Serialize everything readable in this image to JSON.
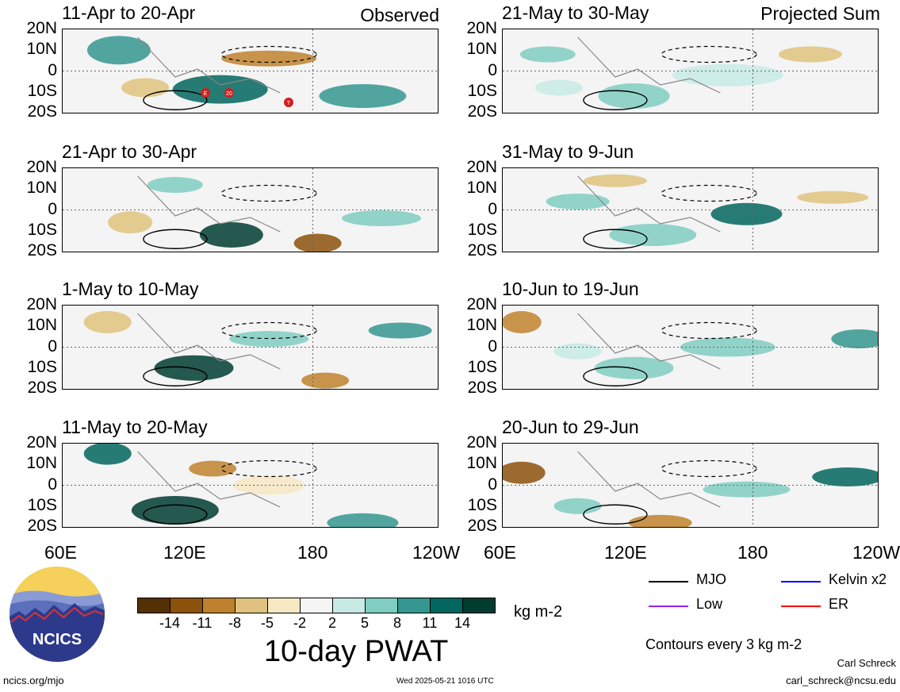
{
  "header": {
    "observed_label": "Observed",
    "projected_label": "Projected Sum"
  },
  "panels_left": [
    {
      "title": "11-Apr to 20-Apr"
    },
    {
      "title": "21-Apr to 30-Apr"
    },
    {
      "title": "1-May to 10-May"
    },
    {
      "title": "11-May to 20-May"
    }
  ],
  "panels_right": [
    {
      "title": "21-May to 30-May"
    },
    {
      "title": "31-May to 9-Jun"
    },
    {
      "title": "10-Jun to 19-Jun"
    },
    {
      "title": "20-Jun to 29-Jun"
    }
  ],
  "lat_labels": [
    "20N",
    "10N",
    "0",
    "10S",
    "20S"
  ],
  "lon_labels": [
    "60E",
    "120E",
    "180",
    "120W"
  ],
  "storm_markers": [
    "E",
    "20",
    "T"
  ],
  "colorbar": {
    "ticks": [
      "-14",
      "-11",
      "-8",
      "-5",
      "-2",
      "2",
      "5",
      "8",
      "11",
      "14"
    ],
    "colors": [
      "#543005",
      "#8c510a",
      "#bf812d",
      "#dfc27d",
      "#f6e8c3",
      "#f5f5f5",
      "#c7eae5",
      "#80cdc1",
      "#35978f",
      "#01665e",
      "#003c30"
    ],
    "unit": "kg m-2",
    "title": "10-day PWAT"
  },
  "legend": {
    "items": [
      {
        "label": "MJO",
        "color": "#000000"
      },
      {
        "label": "Kelvin x2",
        "color": "#0000ff"
      },
      {
        "label": "Low",
        "color": "#a020f0"
      },
      {
        "label": "ER",
        "color": "#ff0000"
      }
    ],
    "contours_note": "Contours every 3 kg m-2"
  },
  "logo": {
    "text": "NCICS"
  },
  "footer": {
    "url": "ncics.org/mjo",
    "timestamp": "Wed 2025-05-21 1016 UTC",
    "author": "Carl Schreck",
    "email": "carl_schreck@ncsu.edu"
  }
}
